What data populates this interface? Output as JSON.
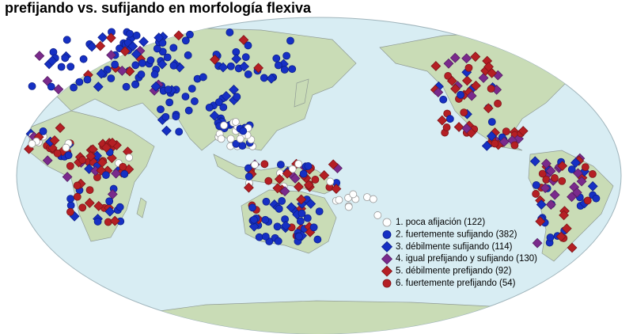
{
  "title": "prefijando vs. sufijando en morfología flexiva",
  "legend": {
    "items": [
      "1. poca afijación (122)",
      "2. fuertemente sufijando (382)",
      "3. débilmente sufijando (114)",
      "4. igual prefijando y sufijando (130)",
      "5. débilmente prefijando (92)",
      "6. fuertemente prefijando (54)"
    ]
  }
}
